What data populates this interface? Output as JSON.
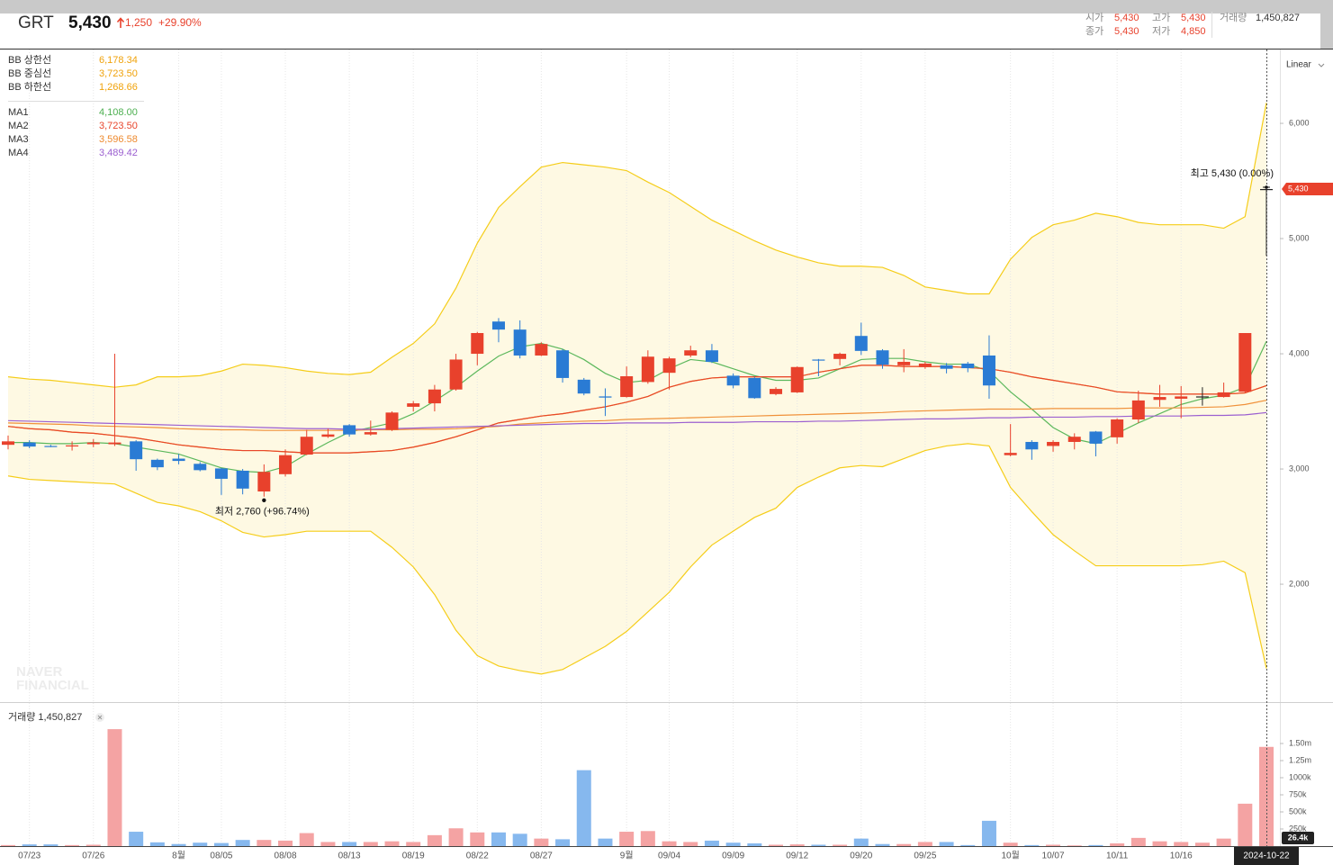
{
  "header": {
    "price": "5,430",
    "change": "1,250",
    "change_pct": "+29.90%",
    "stats": [
      {
        "label": "시가",
        "value": "5,430"
      },
      {
        "label": "고가",
        "value": "5,430"
      },
      {
        "label": "거래량",
        "value": "1,450,827"
      },
      {
        "label": "종가",
        "value": "5,430"
      },
      {
        "label": "저가",
        "value": "4,850"
      }
    ]
  },
  "watermark": [
    "NAVER",
    "FINANCIAL"
  ],
  "chart_data": {
    "type": "candlestick",
    "title": "GRT",
    "scale_label": "Linear",
    "grid": true,
    "band_fill": "#fef9e3",
    "up_color": "#e8412c",
    "down_color": "#2a7bd4",
    "flat_color": "#222222",
    "categories": [
      null,
      "07/23",
      null,
      null,
      "07/26",
      null,
      null,
      null,
      "8월",
      null,
      "08/05",
      null,
      null,
      "08/08",
      null,
      null,
      "08/13",
      null,
      null,
      "08/19",
      null,
      null,
      "08/22",
      null,
      null,
      "08/27",
      null,
      null,
      null,
      "9월",
      null,
      "09/04",
      null,
      null,
      "09/09",
      null,
      null,
      "09/12",
      null,
      null,
      "09/20",
      null,
      null,
      "09/25",
      null,
      null,
      null,
      "10월",
      null,
      "10/07",
      null,
      null,
      "10/11",
      null,
      null,
      "10/16",
      null,
      null,
      null,
      "2024-10-22"
    ],
    "open": [
      3210,
      3230,
      3200,
      3200,
      3215,
      3215,
      3240,
      3080,
      3090,
      3045,
      3005,
      2985,
      2805,
      2955,
      3125,
      3280,
      3380,
      3300,
      3340,
      3540,
      3570,
      3690,
      4000,
      4280,
      4210,
      3985,
      4030,
      3775,
      3630,
      3625,
      3755,
      3835,
      3985,
      4030,
      3810,
      3790,
      3650,
      3665,
      3950,
      3955,
      4155,
      4030,
      3900,
      3885,
      3900,
      3915,
      3985,
      3120,
      3235,
      3200,
      3235,
      3325,
      3275,
      3430,
      3600,
      3610,
      3630,
      3625,
      3670,
      5430
    ],
    "high": [
      3290,
      3250,
      3210,
      3240,
      3260,
      4000,
      3250,
      3090,
      3130,
      3060,
      3010,
      3000,
      3040,
      3170,
      3340,
      3350,
      3390,
      3420,
      3500,
      3590,
      3730,
      4000,
      4190,
      4310,
      4290,
      4100,
      4040,
      3790,
      3700,
      3890,
      4030,
      3975,
      4070,
      4085,
      3830,
      3800,
      3710,
      3890,
      3955,
      4010,
      4270,
      4040,
      4040,
      3930,
      3920,
      3930,
      4160,
      3390,
      3250,
      3250,
      3310,
      3330,
      3440,
      3680,
      3730,
      3720,
      3710,
      3750,
      4180,
      5430
    ],
    "low": [
      3170,
      3180,
      3190,
      3160,
      3190,
      3200,
      2985,
      2990,
      3040,
      2980,
      2775,
      2780,
      2760,
      2935,
      3120,
      3270,
      3280,
      3290,
      3330,
      3500,
      3500,
      3680,
      3900,
      4100,
      3960,
      3980,
      3750,
      3640,
      3460,
      3620,
      3740,
      3690,
      3970,
      3920,
      3700,
      3610,
      3640,
      3660,
      3805,
      3900,
      3990,
      3870,
      3840,
      3870,
      3830,
      3840,
      3610,
      3110,
      3080,
      3150,
      3170,
      3110,
      3220,
      3400,
      3540,
      3440,
      3550,
      3620,
      3660,
      4850
    ],
    "close": [
      3240,
      3195,
      3195,
      3205,
      3230,
      3230,
      3085,
      3015,
      3070,
      2990,
      2915,
      2830,
      2975,
      3120,
      3280,
      3300,
      3300,
      3320,
      3490,
      3570,
      3690,
      3950,
      4180,
      4210,
      3985,
      4085,
      3790,
      3655,
      3620,
      3805,
      3975,
      3960,
      4030,
      3930,
      3725,
      3615,
      3695,
      3885,
      3945,
      4000,
      4025,
      3905,
      3930,
      3915,
      3870,
      3875,
      3725,
      3140,
      3170,
      3235,
      3280,
      3220,
      3430,
      3595,
      3625,
      3630,
      3630,
      3665,
      4180,
      5430
    ],
    "ylim": [
      977,
      6641
    ],
    "yticks": [
      {
        "value": 2000,
        "label": "2,000"
      },
      {
        "value": 3000,
        "label": "3,000"
      },
      {
        "value": 4000,
        "label": "4,000"
      },
      {
        "value": 5000,
        "label": "5,000"
      },
      {
        "value": 6000,
        "label": "6,000"
      }
    ],
    "last_price_label": "5,430",
    "annotations": [
      {
        "text": "최고 5,430 (0.00%)"
      },
      {
        "text": "최저 2,760 (+96.74%)"
      }
    ],
    "series": [
      {
        "name": "BB 상한선",
        "color": "#f5cd19",
        "label_color": "#f0a20a",
        "legend_value": "6,178.34",
        "values": [
          3800,
          3780,
          3770,
          3750,
          3730,
          3710,
          3730,
          3800,
          3800,
          3810,
          3850,
          3910,
          3900,
          3880,
          3850,
          3830,
          3820,
          3840,
          3970,
          4090,
          4260,
          4570,
          4960,
          5270,
          5450,
          5620,
          5660,
          5640,
          5620,
          5590,
          5490,
          5400,
          5280,
          5160,
          5070,
          4980,
          4900,
          4840,
          4790,
          4760,
          4760,
          4750,
          4680,
          4580,
          4550,
          4520,
          4520,
          4820,
          5010,
          5120,
          5160,
          5220,
          5190,
          5140,
          5120,
          5120,
          5120,
          5090,
          5190,
          6178.34
        ]
      },
      {
        "name": "BB 중심선",
        "color": "#f0a20a",
        "label_color": "#f0a20a",
        "legend_value": "3,723.50",
        "values": [
          3370,
          3350,
          3340,
          3320,
          3310,
          3290,
          3270,
          3240,
          3210,
          3190,
          3170,
          3160,
          3160,
          3150,
          3140,
          3140,
          3140,
          3150,
          3160,
          3190,
          3230,
          3280,
          3340,
          3400,
          3430,
          3460,
          3480,
          3510,
          3540,
          3580,
          3630,
          3710,
          3760,
          3790,
          3800,
          3800,
          3800,
          3800,
          3840,
          3870,
          3900,
          3900,
          3890,
          3890,
          3890,
          3880,
          3870,
          3840,
          3800,
          3770,
          3740,
          3710,
          3670,
          3660,
          3650,
          3650,
          3650,
          3650,
          3660,
          3723.5
        ]
      },
      {
        "name": "BB 하한선",
        "color": "#f5cd19",
        "label_color": "#f0a20a",
        "legend_value": "1,268.66",
        "values": [
          2940,
          2910,
          2900,
          2890,
          2880,
          2870,
          2790,
          2710,
          2680,
          2630,
          2550,
          2450,
          2410,
          2430,
          2460,
          2460,
          2460,
          2460,
          2320,
          2150,
          1910,
          1600,
          1380,
          1290,
          1250,
          1220,
          1260,
          1360,
          1460,
          1590,
          1760,
          1930,
          2150,
          2340,
          2460,
          2580,
          2660,
          2840,
          2930,
          3010,
          3030,
          3020,
          3090,
          3160,
          3200,
          3220,
          3200,
          2840,
          2630,
          2430,
          2290,
          2160,
          2160,
          2160,
          2160,
          2160,
          2170,
          2200,
          2100,
          1268.66
        ]
      },
      {
        "name": "MA1",
        "color": "#5cb85c",
        "label_color": "#4caf50",
        "legend_value": "4,108.00",
        "values": [
          3230,
          3230,
          3220,
          3220,
          3230,
          3220,
          3190,
          3160,
          3130,
          3070,
          3010,
          2980,
          2970,
          3020,
          3130,
          3230,
          3320,
          3360,
          3400,
          3480,
          3590,
          3710,
          3850,
          3980,
          4060,
          4090,
          4040,
          3950,
          3830,
          3750,
          3770,
          3870,
          3950,
          3930,
          3870,
          3810,
          3770,
          3770,
          3790,
          3870,
          3950,
          3960,
          3960,
          3930,
          3910,
          3910,
          3850,
          3670,
          3520,
          3360,
          3260,
          3220,
          3310,
          3400,
          3480,
          3560,
          3610,
          3640,
          3710,
          4108
        ]
      },
      {
        "name": "MA2",
        "color": "#e8452c",
        "label_color": "#e8452c",
        "legend_value": "3,723.50",
        "values": [
          3370,
          3350,
          3340,
          3320,
          3310,
          3290,
          3270,
          3240,
          3210,
          3190,
          3170,
          3160,
          3160,
          3150,
          3140,
          3140,
          3140,
          3150,
          3160,
          3190,
          3230,
          3280,
          3340,
          3400,
          3430,
          3460,
          3480,
          3510,
          3540,
          3580,
          3630,
          3710,
          3760,
          3790,
          3800,
          3800,
          3800,
          3800,
          3840,
          3870,
          3900,
          3900,
          3890,
          3890,
          3890,
          3880,
          3870,
          3840,
          3800,
          3770,
          3740,
          3710,
          3670,
          3660,
          3650,
          3650,
          3650,
          3650,
          3660,
          3723.5
        ]
      },
      {
        "name": "MA3",
        "color": "#f0913a",
        "label_color": "#ee8a2f",
        "legend_value": "3,596.58",
        "values": [
          3400,
          3395,
          3390,
          3385,
          3375,
          3370,
          3365,
          3360,
          3350,
          3345,
          3340,
          3340,
          3335,
          3335,
          3335,
          3335,
          3335,
          3340,
          3340,
          3345,
          3345,
          3350,
          3360,
          3370,
          3390,
          3400,
          3410,
          3415,
          3420,
          3430,
          3435,
          3440,
          3445,
          3450,
          3455,
          3460,
          3465,
          3470,
          3475,
          3480,
          3485,
          3490,
          3500,
          3505,
          3510,
          3515,
          3520,
          3520,
          3520,
          3525,
          3525,
          3525,
          3525,
          3530,
          3530,
          3530,
          3535,
          3540,
          3560,
          3596.58
        ]
      },
      {
        "name": "MA4",
        "color": "#9b5fd0",
        "label_color": "#9b5fd0",
        "legend_value": "3,489.42",
        "values": [
          3420,
          3415,
          3410,
          3405,
          3400,
          3395,
          3390,
          3385,
          3380,
          3375,
          3370,
          3365,
          3360,
          3355,
          3350,
          3350,
          3345,
          3345,
          3350,
          3355,
          3360,
          3365,
          3370,
          3375,
          3380,
          3385,
          3390,
          3395,
          3395,
          3400,
          3400,
          3400,
          3405,
          3405,
          3405,
          3410,
          3410,
          3410,
          3415,
          3415,
          3420,
          3425,
          3430,
          3435,
          3435,
          3440,
          3445,
          3445,
          3450,
          3450,
          3450,
          3455,
          3455,
          3460,
          3460,
          3460,
          3465,
          3465,
          3470,
          3489.42
        ]
      }
    ],
    "volume": {
      "label": "거래량 1,450,827",
      "up_color": "#f4a3a3",
      "down_color": "#86b8ee",
      "values": [
        15000,
        25000,
        25000,
        15000,
        20000,
        1710000,
        210000,
        55000,
        30000,
        50000,
        45000,
        90000,
        90000,
        80000,
        190000,
        60000,
        60000,
        60000,
        70000,
        60000,
        160000,
        260000,
        200000,
        200000,
        180000,
        110000,
        100000,
        1110000,
        110000,
        210000,
        220000,
        70000,
        60000,
        80000,
        50000,
        40000,
        20000,
        25000,
        20000,
        20000,
        110000,
        30000,
        30000,
        60000,
        60000,
        15000,
        370000,
        50000,
        15000,
        20000,
        10000,
        15000,
        40000,
        120000,
        70000,
        60000,
        50000,
        110000,
        620000,
        1450827
      ],
      "ylim": [
        0,
        2040000
      ],
      "yticks": [
        {
          "value": 250000,
          "label": "250k"
        },
        {
          "value": 500000,
          "label": "500k"
        },
        {
          "value": 750000,
          "label": "750k"
        },
        {
          "value": 1000000,
          "label": "1000k"
        },
        {
          "value": 1250000,
          "label": "1.25m"
        },
        {
          "value": 1500000,
          "label": "1.50m"
        }
      ],
      "crosshair_label": "26.4k"
    }
  }
}
